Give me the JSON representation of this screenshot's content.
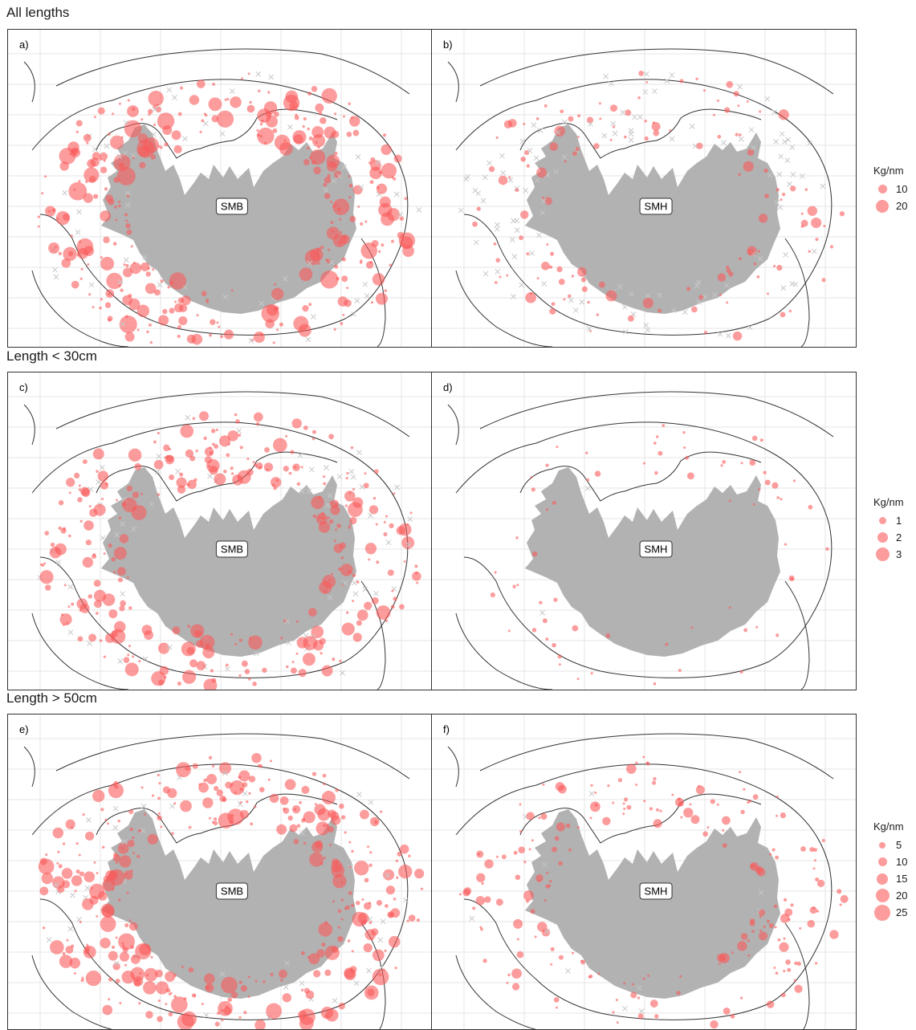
{
  "rows": [
    {
      "title": "All lengths",
      "panels": [
        {
          "label": "a)",
          "survey": "SMB"
        },
        {
          "label": "b)",
          "survey": "SMH"
        }
      ],
      "legend": {
        "title": "Kg/nm",
        "items": [
          "10",
          "20"
        ]
      }
    },
    {
      "title": "Length < 30cm",
      "panels": [
        {
          "label": "c)",
          "survey": "SMB"
        },
        {
          "label": "d)",
          "survey": "SMH"
        }
      ],
      "legend": {
        "title": "Kg/nm",
        "items": [
          "1",
          "2",
          "3"
        ]
      }
    },
    {
      "title": "Length > 50cm",
      "panels": [
        {
          "label": "e)",
          "survey": "SMB"
        },
        {
          "label": "f)",
          "survey": "SMH"
        }
      ],
      "legend": {
        "title": "Kg/nm",
        "items": [
          "5",
          "10",
          "15",
          "20",
          "25"
        ]
      }
    }
  ],
  "colors": {
    "point": "#fa5a5a",
    "land": "#b2b2b2",
    "zero_catch": "#c8c8c8",
    "contour": "#333333",
    "grid": "#e6e6e6"
  },
  "chart_data": {
    "type": "scatter",
    "description_units": "bubble size = Kg/nm; crosses = zero catch",
    "panels": [
      {
        "id": "a",
        "survey": "SMB",
        "size_legend": [
          10,
          20
        ]
      },
      {
        "id": "b",
        "survey": "SMH",
        "size_legend": [
          10,
          20
        ]
      },
      {
        "id": "c",
        "survey": "SMB",
        "size_legend": [
          1,
          2,
          3
        ]
      },
      {
        "id": "d",
        "survey": "SMH",
        "size_legend": [
          1,
          2,
          3
        ]
      },
      {
        "id": "e",
        "survey": "SMB",
        "size_legend": [
          5,
          10,
          15,
          20,
          25
        ]
      },
      {
        "id": "f",
        "survey": "SMH",
        "size_legend": [
          5,
          10,
          15,
          20,
          25
        ]
      }
    ]
  }
}
